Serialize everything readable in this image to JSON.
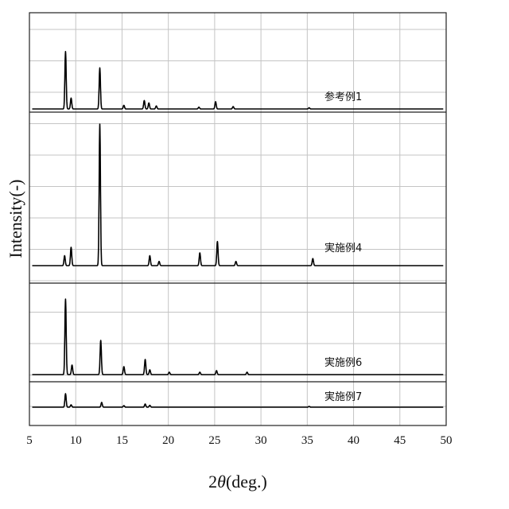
{
  "chart_data": {
    "type": "line",
    "xlabel_prefix": "2",
    "xlabel_symbol": "θ",
    "xlabel_suffix": "(deg.)",
    "ylabel": "Intensity(-)",
    "xlim": [
      5,
      50
    ],
    "xticks": [
      5,
      10,
      15,
      20,
      25,
      30,
      35,
      40,
      45,
      50
    ],
    "grid": true,
    "panels": [
      {
        "name": "参考例1",
        "peaks": [
          [
            8.9,
            0.95
          ],
          [
            9.5,
            0.18
          ],
          [
            12.6,
            0.68
          ],
          [
            15.2,
            0.06
          ],
          [
            17.4,
            0.14
          ],
          [
            17.9,
            0.1
          ],
          [
            18.7,
            0.05
          ],
          [
            23.3,
            0.03
          ],
          [
            25.1,
            0.12
          ],
          [
            27.0,
            0.04
          ],
          [
            35.2,
            0.02
          ]
        ]
      },
      {
        "name": "実施例4",
        "peaks": [
          [
            8.8,
            0.07
          ],
          [
            9.5,
            0.13
          ],
          [
            12.6,
            1.0
          ],
          [
            18.0,
            0.07
          ],
          [
            19.0,
            0.03
          ],
          [
            23.4,
            0.09
          ],
          [
            25.3,
            0.17
          ],
          [
            27.3,
            0.03
          ],
          [
            35.6,
            0.05
          ]
        ]
      },
      {
        "name": "実施例6",
        "peaks": [
          [
            8.9,
            0.95
          ],
          [
            9.6,
            0.12
          ],
          [
            12.7,
            0.43
          ],
          [
            15.2,
            0.1
          ],
          [
            17.5,
            0.19
          ],
          [
            18.0,
            0.06
          ],
          [
            20.1,
            0.03
          ],
          [
            23.4,
            0.03
          ],
          [
            25.2,
            0.05
          ],
          [
            28.5,
            0.03
          ]
        ]
      },
      {
        "name": "実施例7",
        "peaks": [
          [
            8.9,
            0.85
          ],
          [
            9.5,
            0.15
          ],
          [
            12.8,
            0.3
          ],
          [
            15.2,
            0.1
          ],
          [
            17.5,
            0.2
          ],
          [
            18.0,
            0.12
          ],
          [
            35.2,
            0.05
          ]
        ]
      }
    ]
  }
}
